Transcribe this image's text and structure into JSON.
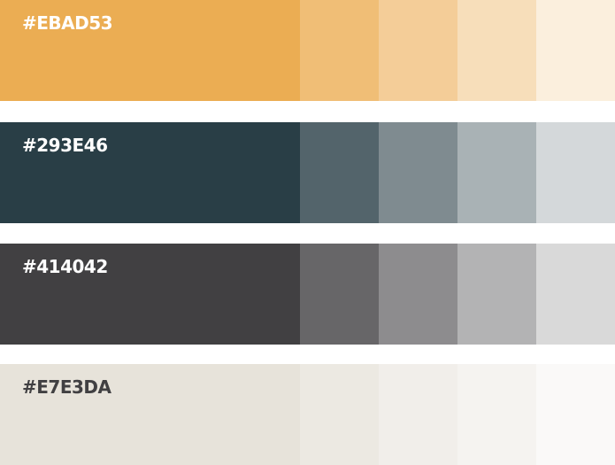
{
  "palette": [
    {
      "label": "#EBAD53",
      "label_color": "#ffffff",
      "shades": [
        "#EBAD53",
        "#F0BE76",
        "#F4CD98",
        "#F7DEBA",
        "#FBEFDD"
      ]
    },
    {
      "label": "#293E46",
      "label_color": "#ffffff",
      "shades": [
        "#293E46",
        "#53646B",
        "#7F8B90",
        "#A9B2B5",
        "#D4D8DA"
      ]
    },
    {
      "label": "#414042",
      "label_color": "#ffffff",
      "shades": [
        "#414042",
        "#676668",
        "#8D8C8E",
        "#B3B3B4",
        "#D9D9D9"
      ]
    },
    {
      "label": "#E7E3DA",
      "label_color": "#414042",
      "shades": [
        "#E7E3DA",
        "#ECE9E2",
        "#F1EEEA",
        "#F5F3F0",
        "#FAF9F8"
      ]
    }
  ]
}
